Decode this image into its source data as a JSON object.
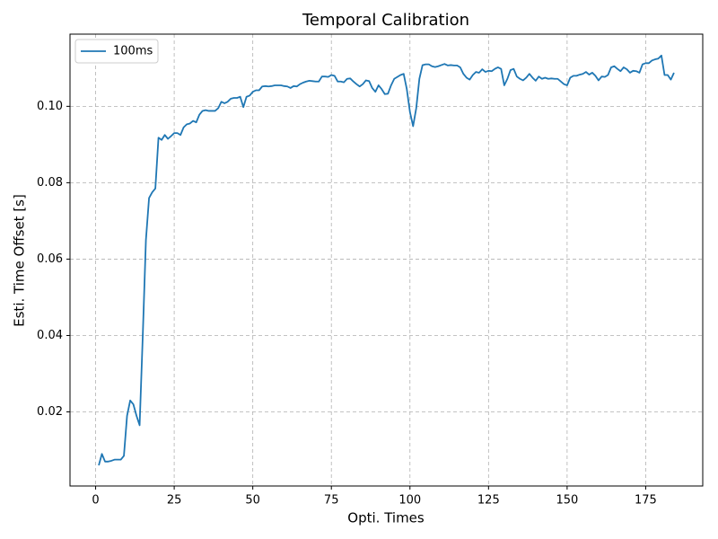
{
  "chart_data": {
    "type": "line",
    "title": "Temporal Calibration",
    "xlabel": "Opti. Times",
    "ylabel": "Esti. Time Offset [s]",
    "x": [
      1,
      2,
      3,
      4,
      5,
      6,
      7,
      8,
      9,
      10,
      11,
      12,
      13,
      14,
      15,
      16,
      17,
      18,
      19,
      20,
      21,
      22,
      23,
      24,
      25,
      26,
      27,
      28,
      29,
      30,
      31,
      32,
      33,
      34,
      35,
      36,
      37,
      38,
      39,
      40,
      41,
      42,
      43,
      44,
      45,
      46,
      47,
      48,
      49,
      50,
      51,
      52,
      53,
      54,
      55,
      56,
      57,
      58,
      59,
      60,
      61,
      62,
      63,
      64,
      65,
      66,
      67,
      68,
      69,
      70,
      71,
      72,
      73,
      74,
      75,
      76,
      77,
      78,
      79,
      80,
      81,
      82,
      83,
      84,
      85,
      86,
      87,
      88,
      89,
      90,
      91,
      92,
      93,
      94,
      95,
      96,
      97,
      98,
      99,
      100,
      101,
      102,
      103,
      104,
      105,
      106,
      107,
      108,
      109,
      110,
      111,
      112,
      113,
      114,
      115,
      116,
      117,
      118,
      119,
      120,
      121,
      122,
      123,
      124,
      125,
      126,
      127,
      128,
      129,
      130,
      131,
      132,
      133,
      134,
      135,
      136,
      137,
      138,
      139,
      140,
      141,
      142,
      143,
      144,
      145,
      146,
      147,
      148,
      149,
      150,
      151,
      152,
      153,
      154,
      155,
      156,
      157,
      158,
      159,
      160,
      161,
      162,
      163,
      164,
      165,
      166,
      167,
      168,
      169,
      170,
      171,
      172,
      173,
      174,
      175,
      176,
      177,
      178,
      179,
      180,
      181,
      182,
      183,
      184
    ],
    "series": [
      {
        "name": "100ms",
        "color": "#1f77b4",
        "values": [
          0.006,
          0.009,
          0.007,
          0.007,
          0.0072,
          0.0075,
          0.0075,
          0.0075,
          0.0085,
          0.019,
          0.023,
          0.022,
          0.019,
          0.0165,
          0.04,
          0.065,
          0.076,
          0.0775,
          0.0785,
          0.0918,
          0.0912,
          0.0925,
          0.0915,
          0.0922,
          0.093,
          0.093,
          0.0925,
          0.0945,
          0.0953,
          0.0955,
          0.0962,
          0.0958,
          0.0978,
          0.0988,
          0.099,
          0.0988,
          0.0988,
          0.0988,
          0.0995,
          0.1012,
          0.1008,
          0.1012,
          0.102,
          0.1022,
          0.1022,
          0.1025,
          0.0998,
          0.1025,
          0.1028,
          0.1038,
          0.1042,
          0.1042,
          0.1052,
          0.1053,
          0.1052,
          0.1053,
          0.1055,
          0.1055,
          0.1055,
          0.1053,
          0.1052,
          0.1048,
          0.1053,
          0.1052,
          0.1058,
          0.1062,
          0.1065,
          0.1067,
          0.1066,
          0.1065,
          0.1065,
          0.1078,
          0.1078,
          0.1077,
          0.1082,
          0.108,
          0.1065,
          0.1065,
          0.1063,
          0.1072,
          0.1073,
          0.1065,
          0.1058,
          0.1052,
          0.1058,
          0.1068,
          0.1066,
          0.1048,
          0.1038,
          0.1055,
          0.1045,
          0.1032,
          0.1033,
          0.1055,
          0.1072,
          0.1077,
          0.1082,
          0.1085,
          0.1045,
          0.0985,
          0.0948,
          0.0995,
          0.1072,
          0.1108,
          0.111,
          0.111,
          0.1105,
          0.1103,
          0.1105,
          0.1108,
          0.1111,
          0.1107,
          0.1108,
          0.1107,
          0.1107,
          0.1102,
          0.1085,
          0.1075,
          0.107,
          0.1082,
          0.109,
          0.1088,
          0.1097,
          0.109,
          0.1093,
          0.1092,
          0.1098,
          0.1102,
          0.1098,
          0.1055,
          0.1072,
          0.1095,
          0.1098,
          0.1078,
          0.1072,
          0.1068,
          0.1075,
          0.1085,
          0.1075,
          0.1067,
          0.1078,
          0.1072,
          0.1075,
          0.1072,
          0.1073,
          0.1072,
          0.1072,
          0.1065,
          0.1058,
          0.1055,
          0.1075,
          0.108,
          0.108,
          0.1083,
          0.1085,
          0.109,
          0.1083,
          0.1088,
          0.108,
          0.1068,
          0.1078,
          0.1077,
          0.1082,
          0.1102,
          0.1105,
          0.1098,
          0.1092,
          0.1102,
          0.1097,
          0.1088,
          0.1093,
          0.1092,
          0.1088,
          0.111,
          0.1113,
          0.1113,
          0.112,
          0.1123,
          0.1125,
          0.1133,
          0.1082,
          0.1082,
          0.107,
          0.1088
        ]
      }
    ],
    "xlim": [
      -8.15,
      193.15
    ],
    "ylim": [
      0.0006,
      0.1189
    ],
    "xticks": [
      0,
      25,
      50,
      75,
      100,
      125,
      150,
      175
    ],
    "yticks": [
      0.02,
      0.04,
      0.06,
      0.08,
      {
        "value": 0.1,
        "label": "0.10"
      }
    ],
    "grid": true,
    "legend": "upper-left"
  }
}
